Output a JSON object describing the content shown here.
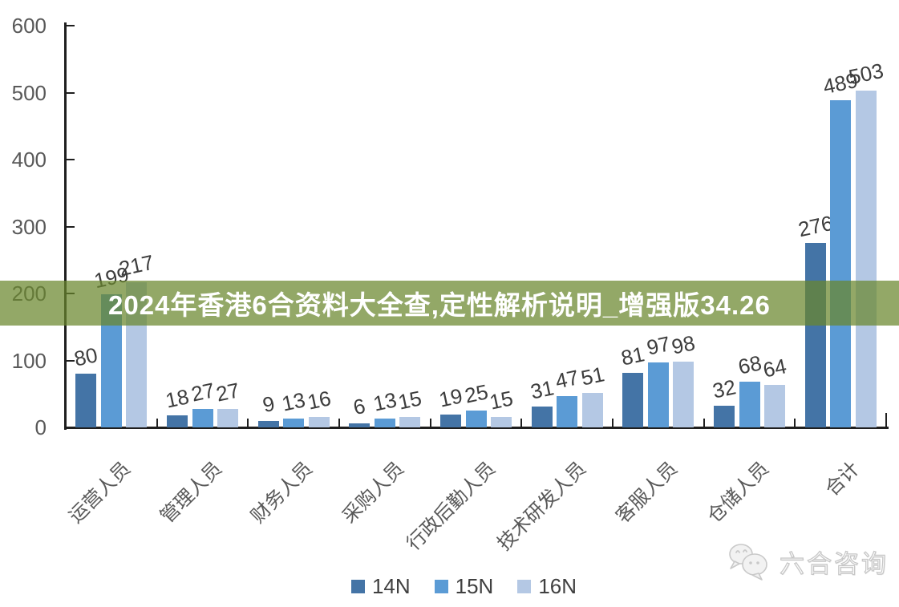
{
  "chart_data": {
    "type": "bar",
    "title": "",
    "xlabel": "",
    "ylabel": "",
    "categories": [
      "运营人员",
      "管理人员",
      "财务人员",
      "采购人员",
      "行政后勤人员",
      "技术研发人员",
      "客服人员",
      "仓储人员",
      "合计"
    ],
    "series": [
      {
        "name": "14N",
        "color": "#4474A6",
        "values": [
          80,
          18,
          9,
          6,
          19,
          31,
          81,
          32,
          276
        ]
      },
      {
        "name": "15N",
        "color": "#5B9BD5",
        "values": [
          199,
          27,
          13,
          13,
          25,
          47,
          97,
          68,
          489
        ]
      },
      {
        "name": "16N",
        "color": "#B4C8E4",
        "values": [
          217,
          27,
          16,
          15,
          15,
          51,
          98,
          64,
          503
        ]
      }
    ],
    "ylim": [
      0,
      600
    ],
    "yticks": [
      0,
      100,
      200,
      300,
      400,
      500,
      600
    ],
    "grid": false,
    "data_labels": true,
    "data_label_rotation": -12,
    "category_label_rotation": -45,
    "legend_position": "bottom",
    "axis_color": "#1f1f1f",
    "tick_label_color": "#595959",
    "data_label_color": "#3d3d3d"
  },
  "banner": {
    "text": "2024年香港6合资料大全查,定性解析说明_增强版34.26",
    "text_color": "#FFFFFF",
    "bg_color": "rgba(105,135,45,0.72)"
  },
  "watermark": {
    "label": "六合咨询",
    "icon": "wechat-logo-icon"
  }
}
